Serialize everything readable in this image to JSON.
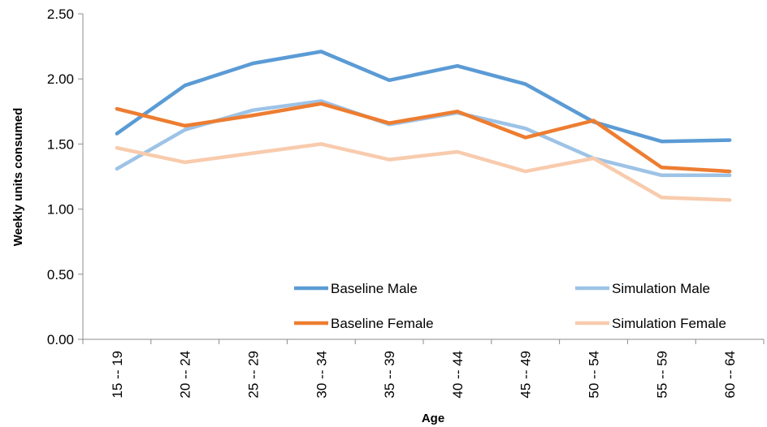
{
  "chart_data": {
    "type": "line",
    "categories": [
      "15 -- 19",
      "20 -- 24",
      "25 -- 29",
      "30 -- 34",
      "35 -- 39",
      "40 -- 44",
      "45 -- 49",
      "50 -- 54",
      "55 -- 59",
      "60 -- 64"
    ],
    "series": [
      {
        "name": "Baseline Male",
        "color": "#5b9bd5",
        "values": [
          1.58,
          1.95,
          2.12,
          2.21,
          1.99,
          2.1,
          1.96,
          1.67,
          1.52,
          1.53
        ]
      },
      {
        "name": "Simulation Male",
        "color": "#9dc3e6",
        "values": [
          1.31,
          1.61,
          1.76,
          1.83,
          1.65,
          1.74,
          1.62,
          1.39,
          1.26,
          1.26
        ]
      },
      {
        "name": "Baseline Female",
        "color": "#ed7d31",
        "values": [
          1.77,
          1.64,
          1.72,
          1.81,
          1.66,
          1.75,
          1.55,
          1.68,
          1.32,
          1.29
        ]
      },
      {
        "name": "Simulation Female",
        "color": "#f8cbad",
        "values": [
          1.47,
          1.36,
          1.43,
          1.5,
          1.38,
          1.44,
          1.29,
          1.39,
          1.09,
          1.07
        ]
      }
    ],
    "xlabel": "Age",
    "ylabel": "Weekly units consumed",
    "ylim": [
      0,
      2.5
    ],
    "yticks": [
      "0.00",
      "0.50",
      "1.00",
      "1.50",
      "2.00",
      "2.50"
    ],
    "grid": false,
    "legend_position": "bottom-right"
  }
}
